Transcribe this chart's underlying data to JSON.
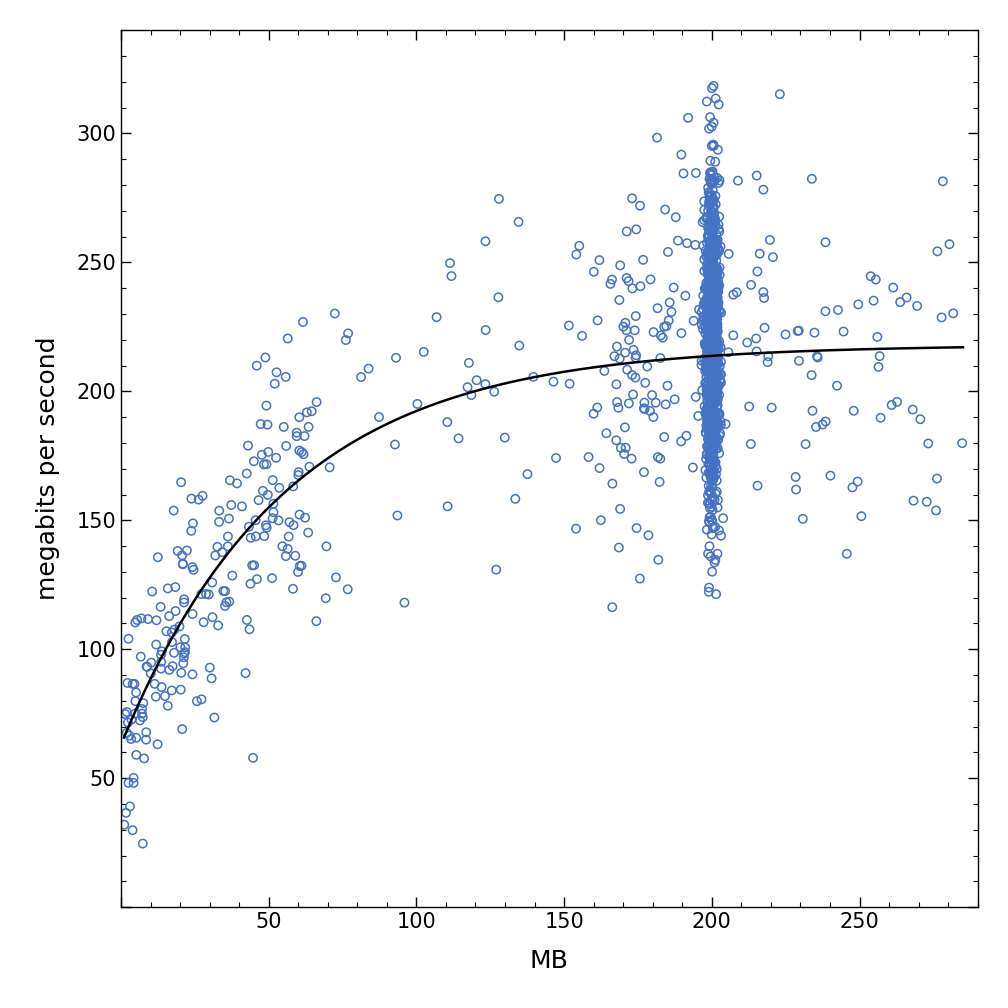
{
  "title": "",
  "xlabel": "MB",
  "ylabel": "megabits per second",
  "xlim": [
    0,
    290
  ],
  "ylim": [
    0,
    340
  ],
  "xticks": [
    0,
    50,
    100,
    150,
    200,
    250
  ],
  "yticks": [
    0,
    50,
    100,
    150,
    200,
    250,
    300
  ],
  "scatter_color": "#4472C4",
  "curve_color": "#000000",
  "marker_size": 6,
  "marker_linewidth": 1.1,
  "curve_linewidth": 1.8,
  "background_color": "#ffffff",
  "xlabel_fontsize": 18,
  "ylabel_fontsize": 18,
  "tick_fontsize": 15,
  "seed": 42,
  "curve_a": 155.0,
  "curve_b": 0.018,
  "curve_c": 218.0,
  "noise_std_small": 18,
  "noise_std_large": 38,
  "n_dense": 1100,
  "cluster_x": 200.0,
  "cluster_x_std": 1.2,
  "cluster_y_mean": 218.0,
  "cluster_y_std": 32.0
}
